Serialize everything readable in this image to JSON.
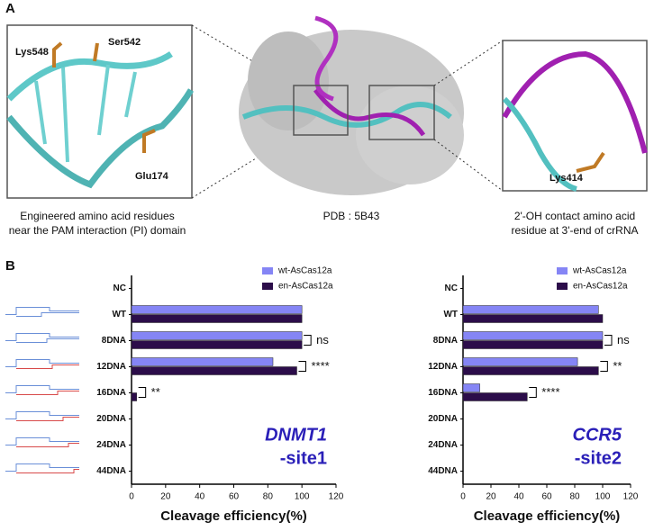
{
  "panel_a": {
    "label": "A",
    "left_inset": {
      "residues": [
        "Lys548",
        "Ser542",
        "Glu174"
      ],
      "caption": [
        "Engineered amino acid residues",
        "near the PAM interaction (PI) domain"
      ]
    },
    "center": {
      "caption": "PDB : 5B43"
    },
    "right_inset": {
      "residues": [
        "Lys414"
      ],
      "caption": [
        "2'-OH contact amino acid",
        "residue at 3'-end of crRNA"
      ]
    }
  },
  "panel_b": {
    "label": "B"
  },
  "chart_data": [
    {
      "type": "bar",
      "orientation": "horizontal",
      "xlabel": "Cleavage efficiency(%)",
      "categories": [
        "NC",
        "WT",
        "8DNA",
        "12DNA",
        "16DNA",
        "20DNA",
        "24DNA",
        "44DNA"
      ],
      "series": [
        {
          "name": "wt-AsCas12a",
          "color": "#8585f5",
          "values": [
            null,
            100,
            100,
            83,
            0,
            0,
            0,
            0
          ]
        },
        {
          "name": "en-AsCas12a",
          "color": "#2c0d4a",
          "values": [
            null,
            100,
            100,
            97,
            3,
            0,
            0,
            0
          ]
        }
      ],
      "significance": [
        null,
        null,
        "ns",
        "****",
        "**",
        null,
        null,
        null
      ],
      "annotation": [
        "DNMT1",
        "-site1"
      ],
      "annotation_color": "#2a1fb8",
      "xlim": [
        0,
        120
      ],
      "xticks": [
        0,
        20,
        40,
        60,
        80,
        100,
        120
      ],
      "legend": "upper right"
    },
    {
      "type": "bar",
      "orientation": "horizontal",
      "xlabel": "Cleavage efficiency(%)",
      "categories": [
        "NC",
        "WT",
        "8DNA",
        "12DNA",
        "16DNA",
        "20DNA",
        "24DNA",
        "44DNA"
      ],
      "series": [
        {
          "name": "wt-AsCas12a",
          "color": "#8585f5",
          "values": [
            null,
            97,
            100,
            82,
            12,
            0,
            0,
            0
          ]
        },
        {
          "name": "en-AsCas12a",
          "color": "#2c0d4a",
          "values": [
            null,
            100,
            100,
            97,
            46,
            0,
            0,
            0
          ]
        }
      ],
      "significance": [
        null,
        null,
        "ns",
        "**",
        "****",
        null,
        null,
        null
      ],
      "annotation": [
        "CCR5",
        "-site2"
      ],
      "annotation_color": "#2a1fb8",
      "xlim": [
        0,
        120
      ],
      "xticks": [
        0,
        20,
        40,
        60,
        80,
        100,
        120
      ],
      "legend": "upper right"
    }
  ]
}
